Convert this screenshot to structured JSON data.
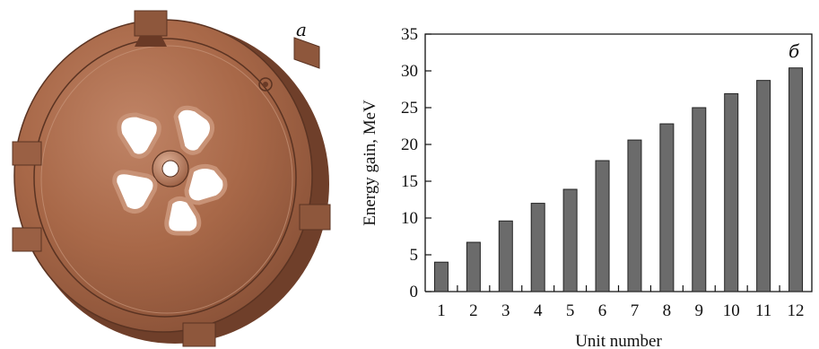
{
  "panels": {
    "left_label": "a",
    "right_label": "б"
  },
  "chart_data": {
    "type": "bar",
    "categories": [
      "1",
      "2",
      "3",
      "4",
      "5",
      "6",
      "7",
      "8",
      "9",
      "10",
      "11",
      "12"
    ],
    "values": [
      4.0,
      6.7,
      9.6,
      12.0,
      13.9,
      17.8,
      20.6,
      22.8,
      25.0,
      26.9,
      28.7,
      30.4
    ],
    "xlabel": "Unit number",
    "ylabel": "Energy gain, MeV",
    "ylim": [
      0,
      35
    ],
    "yticks": [
      0,
      5,
      10,
      15,
      20,
      25,
      30,
      35
    ],
    "grid": false,
    "bar_color": "#6b6b6b"
  },
  "colors": {
    "disk_face": "#a86848",
    "disk_shadow": "#7a4630",
    "disk_highlight": "#c89276"
  }
}
